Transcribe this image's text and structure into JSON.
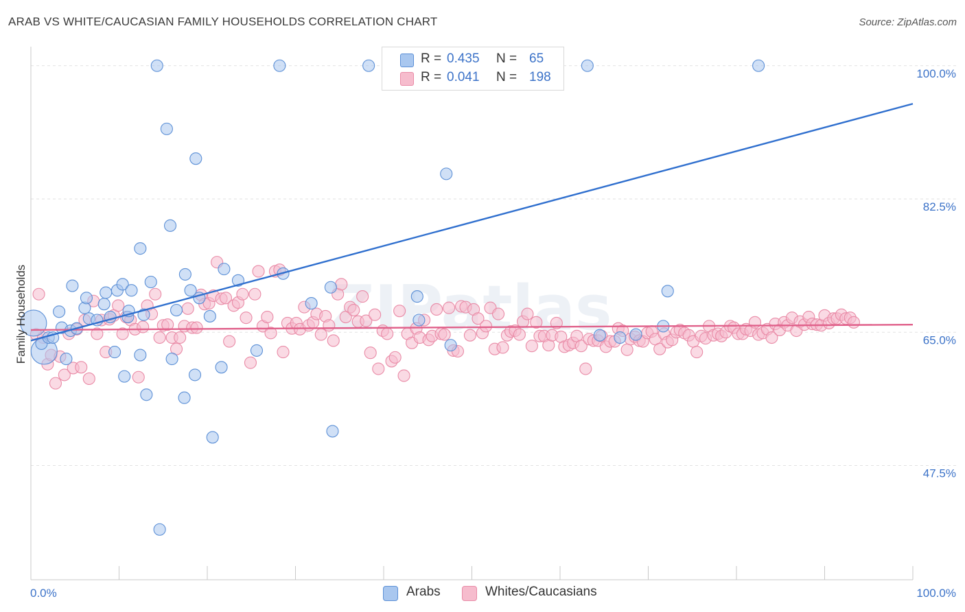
{
  "title": "ARAB VS WHITE/CAUCASIAN FAMILY HOUSEHOLDS CORRELATION CHART",
  "source": "Source: ZipAtlas.com",
  "watermark": "ZIPatlas",
  "colors": {
    "arabs_fill": "#a9c7ef",
    "arabs_stroke": "#5b8fd6",
    "arabs_line": "#2f6fce",
    "whites_fill": "#f6bccd",
    "whites_stroke": "#e98aa6",
    "whites_line": "#e0608a",
    "accent_text": "#3b72c8"
  },
  "legend": {
    "rows": [
      {
        "r_label": "R =",
        "r_value": "0.435",
        "n_label": "N =",
        "n_value": "65"
      },
      {
        "r_label": "R =",
        "r_value": "0.041",
        "n_label": "N =",
        "n_value": "198"
      }
    ],
    "bottom": [
      {
        "label": "Arabs"
      },
      {
        "label": "Whites/Caucasians"
      }
    ]
  },
  "chart_data": {
    "type": "scatter",
    "title": "ARAB VS WHITE/CAUCASIAN FAMILY HOUSEHOLDS CORRELATION CHART",
    "xlabel": "",
    "ylabel": "Family Households",
    "xlim": [
      0,
      100
    ],
    "ylim": [
      32.5,
      102.5
    ],
    "x_tick_labels": [
      "0.0%",
      "100.0%"
    ],
    "y_ticks": [
      {
        "value": 100.0,
        "label": "100.0%"
      },
      {
        "value": 82.5,
        "label": "82.5%"
      },
      {
        "value": 65.0,
        "label": "65.0%"
      },
      {
        "value": 47.5,
        "label": "47.5%"
      }
    ],
    "series": [
      {
        "name": "Arabs",
        "r": 0.435,
        "n": 65,
        "trend": {
          "x": [
            0,
            100
          ],
          "y": [
            63.9,
            95.0
          ]
        },
        "points": [
          [
            0.3,
            66.2,
            "L"
          ],
          [
            1.5,
            62.5,
            "L"
          ],
          [
            1.2,
            63.5
          ],
          [
            2.0,
            64.3
          ],
          [
            2.5,
            64.3
          ],
          [
            3.2,
            67.7
          ],
          [
            3.5,
            65.6
          ],
          [
            4.0,
            61.5
          ],
          [
            4.5,
            65.2
          ],
          [
            4.7,
            71.1
          ],
          [
            5.2,
            65.5
          ],
          [
            6.1,
            68.2
          ],
          [
            6.3,
            69.5
          ],
          [
            6.6,
            66.8
          ],
          [
            7.5,
            66.6
          ],
          [
            8.3,
            68.7
          ],
          [
            8.5,
            70.2
          ],
          [
            9.0,
            67.0
          ],
          [
            9.5,
            62.4
          ],
          [
            9.8,
            70.5
          ],
          [
            10.4,
            71.3
          ],
          [
            10.6,
            59.2
          ],
          [
            11.0,
            67.0
          ],
          [
            11.1,
            67.8
          ],
          [
            11.4,
            70.5
          ],
          [
            12.4,
            62.0
          ],
          [
            12.4,
            76.0
          ],
          [
            12.8,
            67.3
          ],
          [
            13.1,
            56.8
          ],
          [
            13.6,
            71.6
          ],
          [
            14.3,
            100.0
          ],
          [
            14.6,
            39.1
          ],
          [
            15.4,
            91.7
          ],
          [
            15.8,
            79.0
          ],
          [
            16.0,
            61.5
          ],
          [
            16.5,
            67.9
          ],
          [
            17.4,
            56.4
          ],
          [
            17.5,
            72.6
          ],
          [
            18.1,
            70.5
          ],
          [
            18.6,
            59.4
          ],
          [
            18.7,
            87.8
          ],
          [
            19.1,
            69.5
          ],
          [
            20.3,
            67.1
          ],
          [
            20.6,
            51.2
          ],
          [
            21.6,
            60.4
          ],
          [
            21.9,
            73.3
          ],
          [
            23.5,
            71.8
          ],
          [
            25.6,
            62.6
          ],
          [
            28.2,
            100.0
          ],
          [
            28.6,
            72.7
          ],
          [
            31.8,
            68.8
          ],
          [
            34.0,
            70.9
          ],
          [
            34.2,
            52.0
          ],
          [
            38.3,
            100.0
          ],
          [
            43.8,
            69.7
          ],
          [
            44.0,
            66.6
          ],
          [
            47.1,
            85.8
          ],
          [
            47.6,
            63.3
          ],
          [
            63.1,
            100.0
          ],
          [
            64.5,
            64.6
          ],
          [
            66.8,
            64.3
          ],
          [
            68.6,
            64.7
          ],
          [
            71.7,
            65.8
          ],
          [
            72.2,
            70.4
          ],
          [
            82.5,
            100.0
          ]
        ]
      },
      {
        "name": "Whites/Caucasians",
        "r": 0.041,
        "n": 198,
        "trend": {
          "x": [
            0,
            100
          ],
          "y": [
            65.3,
            66.0
          ]
        },
        "points": [
          [
            0.6,
            64.7
          ],
          [
            0.9,
            70.0
          ],
          [
            1.4,
            64.3
          ],
          [
            1.9,
            60.8
          ],
          [
            2.3,
            62.0
          ],
          [
            2.8,
            58.3
          ],
          [
            3.3,
            61.8
          ],
          [
            3.8,
            59.4
          ],
          [
            4.3,
            64.8
          ],
          [
            4.8,
            60.3
          ],
          [
            5.2,
            65.4
          ],
          [
            5.7,
            60.4
          ],
          [
            6.1,
            66.6
          ],
          [
            6.6,
            58.9
          ],
          [
            7.1,
            69.1
          ],
          [
            7.5,
            64.8
          ],
          [
            8.0,
            66.6
          ],
          [
            8.5,
            62.4
          ],
          [
            8.9,
            66.7
          ],
          [
            9.4,
            67.2
          ],
          [
            9.9,
            68.5
          ],
          [
            10.4,
            64.8
          ],
          [
            10.8,
            67.0
          ],
          [
            11.3,
            66.6
          ],
          [
            11.8,
            65.4
          ],
          [
            12.2,
            59.1
          ],
          [
            12.7,
            65.7
          ],
          [
            13.2,
            68.5
          ],
          [
            13.7,
            67.4
          ],
          [
            14.1,
            70.0
          ],
          [
            14.6,
            64.3
          ],
          [
            15.0,
            65.9
          ],
          [
            15.5,
            66.0
          ],
          [
            16.0,
            64.3
          ],
          [
            16.5,
            62.8
          ],
          [
            16.9,
            64.3
          ],
          [
            17.4,
            65.8
          ],
          [
            17.8,
            68.1
          ],
          [
            18.3,
            65.6
          ],
          [
            18.8,
            65.6
          ],
          [
            19.3,
            69.9
          ],
          [
            19.7,
            68.7
          ],
          [
            20.2,
            68.8
          ],
          [
            20.7,
            69.8
          ],
          [
            21.1,
            74.2
          ],
          [
            21.6,
            69.4
          ],
          [
            22.1,
            69.5
          ],
          [
            22.5,
            63.8
          ],
          [
            23.0,
            68.5
          ],
          [
            23.5,
            68.9
          ],
          [
            24.0,
            70.0
          ],
          [
            24.4,
            66.9
          ],
          [
            24.9,
            61.0
          ],
          [
            25.4,
            70.0
          ],
          [
            25.8,
            73.0
          ],
          [
            26.3,
            65.8
          ],
          [
            26.8,
            67.0
          ],
          [
            27.2,
            64.9
          ],
          [
            27.7,
            73.0
          ],
          [
            28.2,
            73.2
          ],
          [
            28.6,
            62.4
          ],
          [
            29.1,
            66.2
          ],
          [
            29.6,
            65.5
          ],
          [
            30.1,
            66.2
          ],
          [
            30.5,
            65.4
          ],
          [
            31.0,
            68.3
          ],
          [
            31.5,
            65.9
          ],
          [
            32.0,
            66.3
          ],
          [
            32.4,
            67.4
          ],
          [
            32.9,
            64.7
          ],
          [
            33.4,
            67.1
          ],
          [
            33.8,
            65.9
          ],
          [
            34.3,
            63.9
          ],
          [
            34.8,
            70.0
          ],
          [
            35.2,
            71.3
          ],
          [
            35.7,
            67.0
          ],
          [
            36.2,
            68.3
          ],
          [
            36.6,
            67.9
          ],
          [
            37.1,
            66.4
          ],
          [
            37.6,
            69.7
          ],
          [
            38.0,
            66.5
          ],
          [
            38.5,
            62.3
          ],
          [
            39.0,
            67.3
          ],
          [
            39.4,
            60.2
          ],
          [
            39.9,
            65.2
          ],
          [
            40.4,
            64.8
          ],
          [
            40.9,
            61.2
          ],
          [
            41.3,
            61.7
          ],
          [
            41.8,
            67.8
          ],
          [
            42.3,
            59.3
          ],
          [
            42.7,
            64.8
          ],
          [
            43.2,
            63.6
          ],
          [
            43.7,
            65.5
          ],
          [
            44.1,
            64.3
          ],
          [
            44.6,
            66.6
          ],
          [
            45.1,
            64.0
          ],
          [
            45.5,
            64.5
          ],
          [
            46.0,
            68.0
          ],
          [
            46.5,
            64.8
          ],
          [
            46.9,
            64.7
          ],
          [
            47.4,
            68.2
          ],
          [
            47.9,
            62.6
          ],
          [
            48.4,
            62.5
          ],
          [
            48.8,
            68.4
          ],
          [
            49.3,
            68.3
          ],
          [
            49.8,
            64.6
          ],
          [
            50.2,
            68.0
          ],
          [
            50.7,
            66.8
          ],
          [
            51.2,
            64.9
          ],
          [
            51.6,
            65.8
          ],
          [
            52.1,
            68.2
          ],
          [
            52.6,
            62.8
          ],
          [
            53.0,
            67.4
          ],
          [
            53.5,
            63.0
          ],
          [
            54.0,
            64.6
          ],
          [
            54.4,
            65.1
          ],
          [
            54.9,
            65.2
          ],
          [
            55.4,
            64.7
          ],
          [
            55.8,
            66.4
          ],
          [
            56.3,
            67.4
          ],
          [
            56.8,
            63.2
          ],
          [
            57.3,
            66.3
          ],
          [
            57.7,
            64.5
          ],
          [
            58.2,
            64.5
          ],
          [
            58.7,
            63.3
          ],
          [
            59.1,
            64.6
          ],
          [
            59.6,
            66.2
          ],
          [
            60.1,
            64.4
          ],
          [
            60.5,
            63.1
          ],
          [
            61.0,
            63.3
          ],
          [
            61.5,
            63.6
          ],
          [
            61.9,
            64.5
          ],
          [
            62.4,
            63.2
          ],
          [
            62.9,
            60.2
          ],
          [
            63.3,
            64.1
          ],
          [
            63.8,
            63.9
          ],
          [
            64.3,
            63.9
          ],
          [
            64.7,
            64.5
          ],
          [
            65.2,
            63.1
          ],
          [
            65.7,
            63.8
          ],
          [
            66.2,
            63.8
          ],
          [
            66.6,
            65.5
          ],
          [
            67.1,
            65.2
          ],
          [
            67.6,
            62.7
          ],
          [
            68.0,
            64.1
          ],
          [
            68.5,
            64.4
          ],
          [
            69.0,
            63.9
          ],
          [
            69.4,
            63.8
          ],
          [
            69.9,
            64.9
          ],
          [
            70.4,
            65.1
          ],
          [
            70.8,
            64.1
          ],
          [
            71.3,
            62.8
          ],
          [
            71.8,
            64.8
          ],
          [
            72.2,
            63.7
          ],
          [
            72.7,
            64.0
          ],
          [
            73.2,
            65.0
          ],
          [
            73.6,
            65.3
          ],
          [
            74.1,
            64.9
          ],
          [
            74.6,
            64.6
          ],
          [
            75.1,
            63.8
          ],
          [
            75.5,
            62.4
          ],
          [
            76.0,
            64.5
          ],
          [
            76.5,
            64.2
          ],
          [
            76.9,
            65.8
          ],
          [
            77.4,
            64.6
          ],
          [
            77.9,
            64.8
          ],
          [
            78.3,
            64.5
          ],
          [
            78.8,
            65.0
          ],
          [
            79.3,
            65.8
          ],
          [
            79.7,
            65.6
          ],
          [
            80.2,
            64.8
          ],
          [
            80.7,
            64.8
          ],
          [
            81.1,
            65.4
          ],
          [
            81.6,
            65.2
          ],
          [
            82.1,
            66.3
          ],
          [
            82.5,
            64.7
          ],
          [
            83.0,
            64.9
          ],
          [
            83.5,
            65.4
          ],
          [
            84.0,
            64.3
          ],
          [
            84.4,
            66.1
          ],
          [
            84.9,
            65.3
          ],
          [
            85.4,
            66.3
          ],
          [
            85.8,
            65.9
          ],
          [
            86.3,
            66.9
          ],
          [
            86.8,
            65.2
          ],
          [
            87.2,
            66.4
          ],
          [
            87.7,
            66.0
          ],
          [
            88.2,
            67.0
          ],
          [
            88.6,
            66.1
          ],
          [
            89.1,
            66.0
          ],
          [
            89.6,
            65.9
          ],
          [
            90.0,
            67.2
          ],
          [
            90.5,
            66.2
          ],
          [
            91.0,
            66.8
          ],
          [
            91.4,
            66.8
          ],
          [
            91.9,
            67.3
          ],
          [
            92.4,
            66.8
          ],
          [
            92.9,
            66.9
          ],
          [
            93.3,
            66.3
          ]
        ]
      }
    ]
  }
}
